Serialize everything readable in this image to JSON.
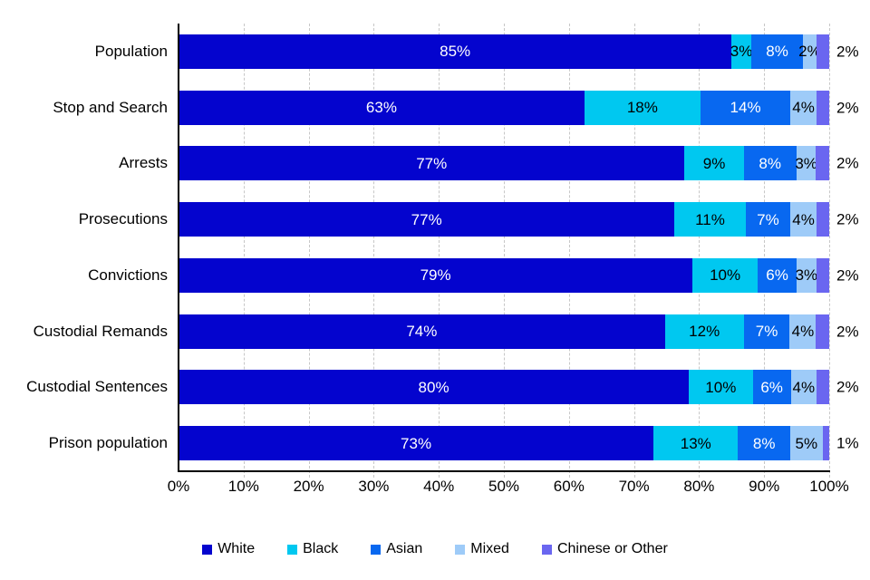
{
  "chart_data": {
    "type": "bar",
    "orientation": "horizontal",
    "stacked": true,
    "title": "",
    "categories": [
      "Population",
      "Stop and Search",
      "Arrests",
      "Prosecutions",
      "Convictions",
      "Custodial Remands",
      "Custodial Sentences",
      "Prison population"
    ],
    "series": [
      {
        "name": "White",
        "color": "#0404CE",
        "label_color": "#FFFFFF",
        "label_position": "inside",
        "values": [
          85,
          63,
          77,
          77,
          79,
          74,
          80,
          73
        ]
      },
      {
        "name": "Black",
        "color": "#00C8F0",
        "label_color": "#000000",
        "label_position": "inside",
        "values": [
          3,
          18,
          9,
          11,
          10,
          12,
          10,
          13
        ]
      },
      {
        "name": "Asian",
        "color": "#0868F0",
        "label_color": "#FFFFFF",
        "label_position": "inside",
        "values": [
          8,
          14,
          8,
          7,
          6,
          7,
          6,
          8
        ]
      },
      {
        "name": "Mixed",
        "color": "#9ECBF8",
        "label_color": "#000000",
        "label_position": "inside",
        "values": [
          2,
          4,
          3,
          4,
          3,
          4,
          4,
          5
        ]
      },
      {
        "name": "Chinese or Other",
        "color": "#6A66F0",
        "label_color": "#000000",
        "label_position": "outside",
        "values": [
          2,
          2,
          2,
          2,
          2,
          2,
          2,
          1
        ]
      }
    ],
    "value_suffix": "%",
    "x_tick_labels": [
      "0%",
      "10%",
      "20%",
      "30%",
      "40%",
      "50%",
      "60%",
      "70%",
      "80%",
      "90%",
      "100%"
    ],
    "xlim": [
      0,
      100
    ],
    "grid": "vertical-dashed",
    "legend_position": "bottom"
  },
  "colors": {
    "background": "#FFFFFF",
    "axis": "#000000",
    "gridline": "#C7C7C7"
  }
}
